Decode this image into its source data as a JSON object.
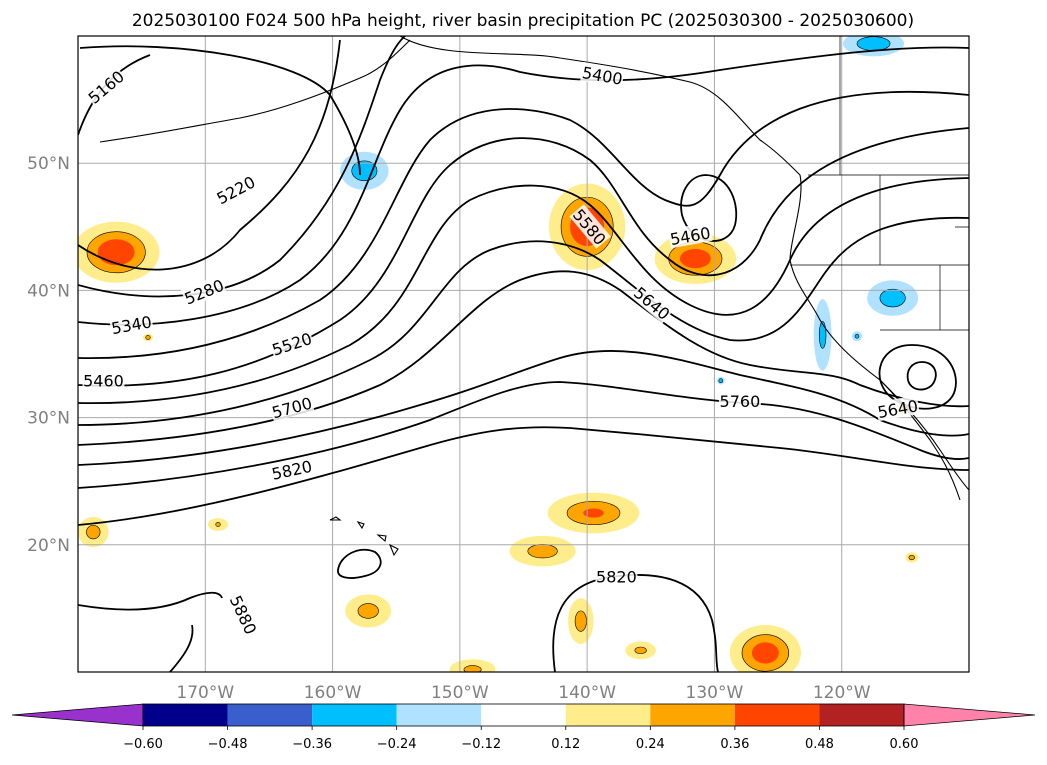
{
  "chart_data": {
    "type": "contour-map",
    "title": "2025030100 F024 500 hPa height, river basin precipitation PC (2025030300 - 2025030600)",
    "lon_range": [
      -180,
      -110
    ],
    "lat_range": [
      10,
      60
    ],
    "grid": true,
    "x_ticks": [
      "170°W",
      "160°W",
      "150°W",
      "140°W",
      "130°W",
      "120°W"
    ],
    "x_tick_values": [
      -170,
      -160,
      -150,
      -140,
      -130,
      -120
    ],
    "y_ticks": [
      "20°N",
      "30°N",
      "40°N",
      "50°N"
    ],
    "y_tick_values": [
      20,
      30,
      40,
      50
    ],
    "height_contour_labels": [
      {
        "text": "5160",
        "lon": -177.8,
        "lat": 56.0,
        "angle": -40
      },
      {
        "text": "5220",
        "lon": -167.6,
        "lat": 47.9,
        "angle": -28
      },
      {
        "text": "5280",
        "lon": -170.1,
        "lat": 39.9,
        "angle": -22
      },
      {
        "text": "5340",
        "lon": -175.8,
        "lat": 37.3,
        "angle": -10
      },
      {
        "text": "5460",
        "lon": -178.0,
        "lat": 32.9,
        "angle": 0
      },
      {
        "text": "5520",
        "lon": -163.2,
        "lat": 35.8,
        "angle": -18
      },
      {
        "text": "5700",
        "lon": -163.2,
        "lat": 30.8,
        "angle": -15
      },
      {
        "text": "5820",
        "lon": -163.2,
        "lat": 25.9,
        "angle": -12
      },
      {
        "text": "5880",
        "lon": -167.0,
        "lat": 14.5,
        "angle": 65
      },
      {
        "text": "5400",
        "lon": -138.8,
        "lat": 56.9,
        "angle": 10
      },
      {
        "text": "5580",
        "lon": -139.8,
        "lat": 45.0,
        "angle": 50
      },
      {
        "text": "5640",
        "lon": -134.9,
        "lat": 39.0,
        "angle": 40
      },
      {
        "text": "5460",
        "lon": -131.9,
        "lat": 44.3,
        "angle": -10
      },
      {
        "text": "5760",
        "lon": -128.0,
        "lat": 31.3,
        "angle": 0
      },
      {
        "text": "5820",
        "lon": -137.7,
        "lat": 17.5,
        "angle": 0
      },
      {
        "text": "5640",
        "lon": -115.6,
        "lat": 30.7,
        "angle": -10
      }
    ],
    "colorbar": {
      "ticks": [
        -0.6,
        -0.48,
        -0.36,
        -0.24,
        -0.12,
        0.12,
        0.24,
        0.36,
        0.48,
        0.6
      ],
      "tick_labels": [
        "−0.60",
        "−0.48",
        "−0.36",
        "−0.24",
        "−0.12",
        "0.12",
        "0.24",
        "0.36",
        "0.48",
        "0.60"
      ],
      "colors": [
        "#9932cc",
        "#00008b",
        "#3a5fcd",
        "#00bfff",
        "#b0e2ff",
        "#ffffff",
        "#ffec8b",
        "#ffa500",
        "#ff4500",
        "#b22222",
        "#ff82ab"
      ],
      "extend": "both"
    },
    "precip_pc_regions": [
      {
        "center": [
          -177,
          43
        ],
        "radius": [
          3.4,
          2.4
        ],
        "value": 0.44
      },
      {
        "center": [
          -140,
          45
        ],
        "radius": [
          3.0,
          3.4
        ],
        "value": 0.45
      },
      {
        "center": [
          -131.5,
          42.5
        ],
        "radius": [
          3.2,
          2.0
        ],
        "value": 0.42
      },
      {
        "center": [
          -139.5,
          22.5
        ],
        "radius": [
          3.6,
          1.6
        ],
        "value": 0.36
      },
      {
        "center": [
          -143.5,
          19.5
        ],
        "radius": [
          2.6,
          1.2
        ],
        "value": 0.3
      },
      {
        "center": [
          -126,
          11.5
        ],
        "radius": [
          2.8,
          2.2
        ],
        "value": 0.42
      },
      {
        "center": [
          -140.5,
          14.0
        ],
        "radius": [
          1.0,
          1.8
        ],
        "value": 0.3
      },
      {
        "center": [
          -157.2,
          14.8
        ],
        "radius": [
          1.8,
          1.3
        ],
        "value": 0.3
      },
      {
        "center": [
          -178.8,
          21.0
        ],
        "radius": [
          1.2,
          1.2
        ],
        "value": 0.3
      },
      {
        "center": [
          -149,
          10.2
        ],
        "radius": [
          1.8,
          0.8
        ],
        "value": 0.28
      },
      {
        "center": [
          -135.8,
          11.7
        ],
        "radius": [
          1.2,
          0.7
        ],
        "value": 0.28
      },
      {
        "center": [
          -169,
          21.6
        ],
        "radius": [
          0.8,
          0.5
        ],
        "value": 0.25
      },
      {
        "center": [
          -114.5,
          19.0
        ],
        "radius": [
          0.5,
          0.4
        ],
        "value": 0.3
      },
      {
        "center": [
          -115.2,
          30.7
        ],
        "radius": [
          0.5,
          0.5
        ],
        "value": 0.25
      },
      {
        "center": [
          -157.5,
          49.4
        ],
        "radius": [
          1.9,
          1.5
        ],
        "value": -0.33
      },
      {
        "center": [
          -117.5,
          59.4
        ],
        "radius": [
          2.4,
          1.0
        ],
        "value": -0.34
      },
      {
        "center": [
          -116,
          39.4
        ],
        "radius": [
          2.0,
          1.4
        ],
        "value": -0.32
      },
      {
        "center": [
          -121.5,
          36.5
        ],
        "radius": [
          0.7,
          2.8
        ],
        "value": -0.28
      },
      {
        "center": [
          -118.8,
          36.4
        ],
        "radius": [
          0.4,
          0.4
        ],
        "value": -0.24
      },
      {
        "center": [
          -129.5,
          32.9
        ],
        "radius": [
          0.3,
          0.3
        ],
        "value": -0.24
      },
      {
        "center": [
          -174.5,
          36.3
        ],
        "radius": [
          0.4,
          0.3
        ],
        "value": 0.3
      }
    ]
  }
}
